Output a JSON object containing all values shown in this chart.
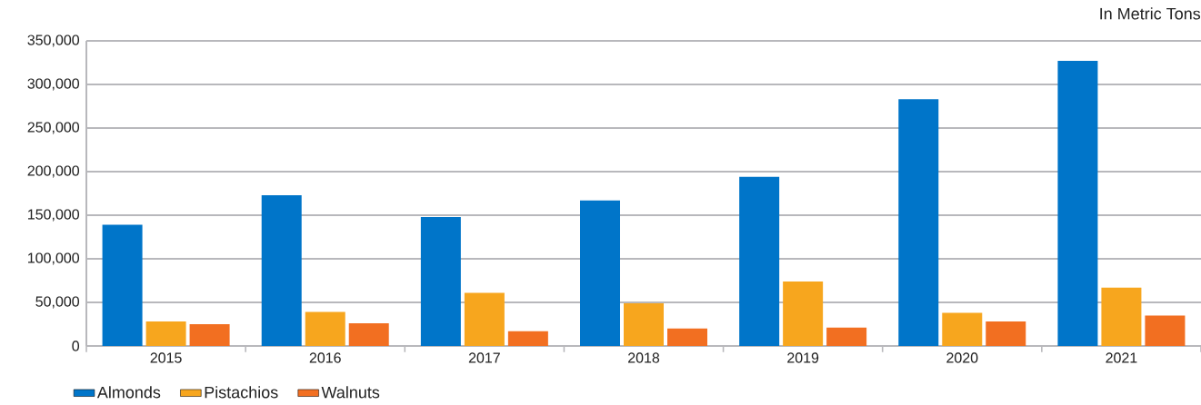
{
  "chart_data": {
    "type": "bar",
    "annotations": [
      "In Metric Tons"
    ],
    "categories": [
      "2015",
      "2016",
      "2017",
      "2018",
      "2019",
      "2020",
      "2021"
    ],
    "series": [
      {
        "name": "Almonds",
        "color": "#0075c9",
        "values": [
          139000,
          173000,
          148000,
          167000,
          194000,
          283000,
          327000
        ]
      },
      {
        "name": "Pistachios",
        "color": "#f7a61e",
        "values": [
          28000,
          39000,
          61000,
          49000,
          74000,
          38000,
          67000
        ]
      },
      {
        "name": "Walnuts",
        "color": "#f26f21",
        "values": [
          25000,
          26000,
          17000,
          20000,
          21000,
          28000,
          35000
        ]
      }
    ],
    "ylim": [
      0,
      350000
    ],
    "yticks": [
      {
        "value": 0,
        "label": "0"
      },
      {
        "value": 50000,
        "label": "50,000"
      },
      {
        "value": 100000,
        "label": "100,000"
      },
      {
        "value": 150000,
        "label": "150,000"
      },
      {
        "value": 200000,
        "label": "200,000"
      },
      {
        "value": 250000,
        "label": "250,000"
      },
      {
        "value": 300000,
        "label": "300,000"
      },
      {
        "value": 350000,
        "label": "350,000"
      }
    ],
    "grid": "y",
    "legend": "bottom left"
  }
}
